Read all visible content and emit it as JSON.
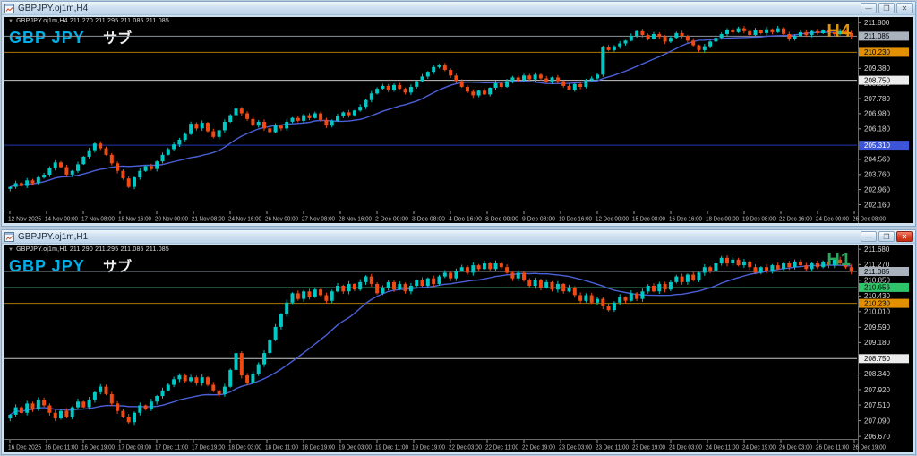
{
  "windows": [
    {
      "title": "GBPJPY.oj1m,H4",
      "active": false,
      "titlebar_buttons": {
        "minimize": "—",
        "restore": "❐",
        "close": "✕"
      },
      "header": {
        "dropdown_arrow": "▼",
        "info": "GBPJPY.oj1m,H4  211.270 211.295 211.085 211.085"
      },
      "watermark": {
        "symbol": "GBP JPY",
        "sub": "サブ"
      },
      "timeframe_badge": "H4",
      "chart_data": {
        "type": "candlestick",
        "price_range": [
          201.85,
          212.1
        ],
        "first_open": 203.0,
        "ma_period": 18,
        "wick": 0.1,
        "up_color": "#00c8c4",
        "down_color": "#f04a14",
        "ma_color": "#4b5fd6",
        "closes": [
          203.1,
          203.3,
          203.15,
          203.45,
          203.3,
          203.6,
          203.75,
          204.1,
          204.4,
          204.15,
          203.75,
          203.95,
          204.3,
          204.7,
          205.05,
          205.4,
          205.15,
          204.8,
          204.35,
          203.95,
          203.55,
          203.1,
          203.6,
          203.95,
          204.2,
          204.05,
          204.45,
          204.8,
          205.1,
          205.35,
          205.6,
          205.9,
          206.45,
          206.2,
          206.5,
          206.05,
          205.75,
          206.1,
          206.55,
          206.9,
          207.25,
          207.0,
          206.7,
          206.35,
          206.55,
          206.2,
          206.0,
          206.35,
          206.2,
          206.55,
          206.75,
          206.6,
          206.9,
          206.75,
          207.0,
          206.65,
          206.35,
          206.6,
          206.85,
          207.05,
          206.9,
          207.15,
          207.35,
          207.7,
          208.05,
          208.3,
          208.45,
          208.25,
          208.5,
          208.3,
          208.1,
          208.4,
          208.7,
          208.95,
          209.2,
          209.45,
          209.55,
          209.3,
          209.0,
          208.7,
          208.4,
          208.15,
          207.95,
          208.2,
          208.0,
          208.35,
          208.6,
          208.4,
          208.7,
          208.9,
          208.75,
          209.0,
          208.8,
          209.05,
          208.85,
          208.65,
          208.9,
          208.7,
          208.45,
          208.25,
          208.55,
          208.4,
          208.75,
          208.85,
          209.05,
          210.5,
          210.35,
          210.55,
          210.7,
          210.85,
          211.1,
          211.35,
          211.15,
          210.95,
          211.2,
          211.05,
          210.8,
          211.0,
          211.25,
          211.1,
          210.85,
          210.6,
          210.35,
          210.55,
          210.8,
          211.0,
          211.2,
          211.4,
          211.3,
          211.5,
          211.35,
          211.15,
          211.4,
          211.25,
          211.45,
          211.3,
          211.5,
          211.2,
          210.95,
          211.1,
          211.3,
          211.15,
          211.35,
          211.25,
          211.4,
          211.3,
          211.2,
          211.35,
          211.25,
          211.085
        ],
        "hlines": [
          {
            "value": 211.085,
            "color": "#8c949c"
          },
          {
            "value": 210.23,
            "color": "#a87800"
          },
          {
            "value": 208.75,
            "color": "#c8c8c8"
          },
          {
            "value": 205.31,
            "color": "#2438b0"
          }
        ],
        "price_badges": [
          {
            "label": "211.085",
            "value": 211.085,
            "bg": "#a9b2bd",
            "fg": "#000000"
          },
          {
            "label": "210.230",
            "value": 210.23,
            "bg": "#e09000",
            "fg": "#000000"
          },
          {
            "label": "208.750",
            "value": 208.75,
            "bg": "#ececec",
            "fg": "#000000"
          },
          {
            "label": "205.310",
            "value": 205.31,
            "bg": "#3c55d8",
            "fg": "#ffffff"
          }
        ],
        "y_ticks": [
          {
            "label": "211.800",
            "value": 211.8
          },
          {
            "label": "209.380",
            "value": 209.38
          },
          {
            "label": "208.580",
            "value": 208.58
          },
          {
            "label": "207.780",
            "value": 207.78
          },
          {
            "label": "206.980",
            "value": 206.98
          },
          {
            "label": "206.180",
            "value": 206.18
          },
          {
            "label": "204.560",
            "value": 204.56
          },
          {
            "label": "203.760",
            "value": 203.76
          },
          {
            "label": "202.960",
            "value": 202.96
          },
          {
            "label": "202.160",
            "value": 202.16
          }
        ],
        "x_labels": [
          "12 Nov 2025",
          "14 Nov 00:00",
          "17 Nov 08:00",
          "18 Nov 16:00",
          "20 Nov 00:00",
          "21 Nov 08:00",
          "24 Nov 16:00",
          "26 Nov 00:00",
          "27 Nov 08:00",
          "28 Nov 16:00",
          "2 Dec 00:00",
          "3 Dec 08:00",
          "4 Dec 16:00",
          "8 Dec 00:00",
          "9 Dec 08:00",
          "10 Dec 16:00",
          "12 Dec 00:00",
          "15 Dec 08:00",
          "16 Dec 16:00",
          "18 Dec 00:00",
          "19 Dec 08:00",
          "22 Dec 16:00",
          "24 Dec 00:00",
          "26 Dec 08:00"
        ]
      }
    },
    {
      "title": "GBPJPY.oj1m,H1",
      "active": true,
      "titlebar_buttons": {
        "minimize": "—",
        "restore": "❐",
        "close": "✕"
      },
      "header": {
        "dropdown_arrow": "▼",
        "info": "GBPJPY.oj1m,H1  211.290 211.295 211.085 211.085"
      },
      "watermark": {
        "symbol": "GBP JPY",
        "sub": "サブ"
      },
      "timeframe_badge": "H1",
      "chart_data": {
        "type": "candlestick",
        "price_range": [
          206.6,
          211.78
        ],
        "first_open": 207.15,
        "ma_period": 20,
        "wick": 0.06,
        "up_color": "#00c8c4",
        "down_color": "#f04a14",
        "ma_color": "#4b5fd6",
        "closes": [
          207.25,
          207.45,
          207.3,
          207.55,
          207.4,
          207.65,
          207.5,
          207.3,
          207.15,
          207.35,
          207.2,
          207.45,
          207.6,
          207.45,
          207.65,
          207.85,
          208.0,
          207.8,
          207.55,
          207.35,
          207.2,
          207.05,
          207.3,
          207.5,
          207.4,
          207.6,
          207.75,
          207.9,
          208.05,
          208.2,
          208.3,
          208.15,
          208.25,
          208.1,
          208.25,
          208.05,
          207.9,
          207.8,
          208.0,
          208.45,
          208.9,
          208.3,
          208.1,
          208.35,
          208.6,
          208.9,
          209.25,
          209.6,
          209.95,
          210.25,
          210.5,
          210.35,
          210.55,
          210.4,
          210.6,
          210.45,
          210.3,
          210.55,
          210.7,
          210.55,
          210.75,
          210.6,
          210.8,
          210.95,
          210.75,
          210.5,
          210.65,
          210.8,
          210.6,
          210.75,
          210.55,
          210.7,
          210.85,
          210.7,
          210.9,
          210.75,
          210.95,
          211.05,
          210.9,
          211.1,
          211.2,
          211.05,
          211.25,
          211.15,
          211.3,
          211.15,
          211.3,
          211.2,
          211.05,
          210.9,
          211.05,
          210.85,
          210.7,
          210.85,
          210.65,
          210.8,
          210.6,
          210.75,
          210.55,
          210.65,
          210.45,
          210.3,
          210.45,
          210.25,
          210.35,
          210.15,
          210.05,
          210.25,
          210.4,
          210.3,
          210.5,
          210.35,
          210.55,
          210.7,
          210.55,
          210.75,
          210.6,
          210.8,
          210.95,
          210.8,
          211.0,
          210.85,
          211.05,
          211.2,
          211.1,
          211.3,
          211.45,
          211.3,
          211.4,
          211.25,
          211.35,
          211.2,
          211.05,
          211.2,
          211.1,
          211.25,
          211.15,
          211.3,
          211.2,
          211.35,
          211.25,
          211.15,
          211.3,
          211.2,
          211.35,
          211.25,
          211.4,
          211.3,
          211.2,
          211.085
        ],
        "hlines": [
          {
            "value": 211.085,
            "color": "#8c949c"
          },
          {
            "value": 210.656,
            "color": "#2f7d55"
          },
          {
            "value": 210.23,
            "color": "#a87800"
          },
          {
            "value": 208.75,
            "color": "#c8c8c8"
          }
        ],
        "price_badges": [
          {
            "label": "211.085",
            "value": 211.085,
            "bg": "#a9b2bd",
            "fg": "#000000"
          },
          {
            "label": "210.656",
            "value": 210.656,
            "bg": "#2fc46a",
            "fg": "#000000"
          },
          {
            "label": "210.230",
            "value": 210.23,
            "bg": "#e09000",
            "fg": "#000000"
          },
          {
            "label": "208.750",
            "value": 208.75,
            "bg": "#ececec",
            "fg": "#000000"
          }
        ],
        "y_ticks": [
          {
            "label": "211.680",
            "value": 211.68
          },
          {
            "label": "211.270",
            "value": 211.27
          },
          {
            "label": "210.850",
            "value": 210.85
          },
          {
            "label": "210.430",
            "value": 210.43
          },
          {
            "label": "210.010",
            "value": 210.01
          },
          {
            "label": "209.590",
            "value": 209.59
          },
          {
            "label": "209.180",
            "value": 209.18
          },
          {
            "label": "208.340",
            "value": 208.34
          },
          {
            "label": "207.920",
            "value": 207.92
          },
          {
            "label": "207.510",
            "value": 207.51
          },
          {
            "label": "207.090",
            "value": 207.09
          },
          {
            "label": "206.670",
            "value": 206.67
          }
        ],
        "x_labels": [
          "16 Dec 2025",
          "16 Dec 11:00",
          "16 Dec 19:00",
          "17 Dec 03:00",
          "17 Dec 11:00",
          "17 Dec 19:00",
          "18 Dec 03:00",
          "18 Dec 11:00",
          "18 Dec 19:00",
          "19 Dec 03:00",
          "19 Dec 11:00",
          "19 Dec 19:00",
          "22 Dec 03:00",
          "22 Dec 11:00",
          "22 Dec 19:00",
          "23 Dec 03:00",
          "23 Dec 11:00",
          "23 Dec 19:00",
          "24 Dec 03:00",
          "24 Dec 11:00",
          "24 Dec 19:00",
          "26 Dec 03:00",
          "26 Dec 11:00",
          "26 Dec 19:00"
        ]
      }
    }
  ]
}
